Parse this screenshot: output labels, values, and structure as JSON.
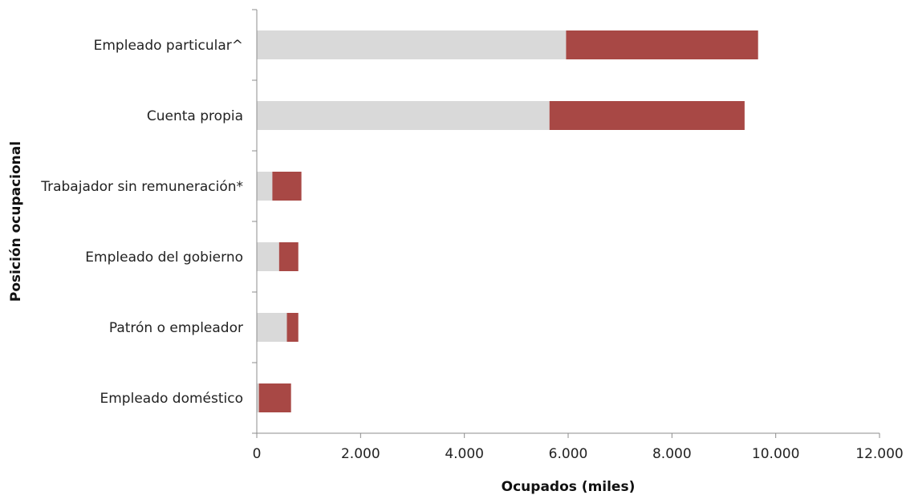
{
  "chart_data": {
    "type": "bar",
    "orientation": "horizontal",
    "stacked": true,
    "categories": [
      "Empleado particular^",
      "Cuenta propia",
      "Trabajador sin remuneración*",
      "Empleado del gobierno",
      "Patrón o empleador",
      "Empleado doméstico"
    ],
    "series": [
      {
        "values": [
          5960,
          5640,
          300,
          430,
          580,
          40
        ],
        "color": "#d9d9d9"
      },
      {
        "values": [
          3700,
          3760,
          560,
          370,
          220,
          620
        ],
        "color": "#a84845"
      }
    ],
    "xlabel": "Ocupados (miles)",
    "ylabel": "Posición ocupacional",
    "xlim": [
      0,
      12000
    ],
    "x_ticks": [
      0,
      2000,
      4000,
      6000,
      8000,
      10000,
      12000
    ],
    "x_tick_labels": [
      "0",
      "2.000",
      "4.000",
      "6.000",
      "8.000",
      "10.000",
      "12.000"
    ],
    "grid": false,
    "legend": "none"
  }
}
